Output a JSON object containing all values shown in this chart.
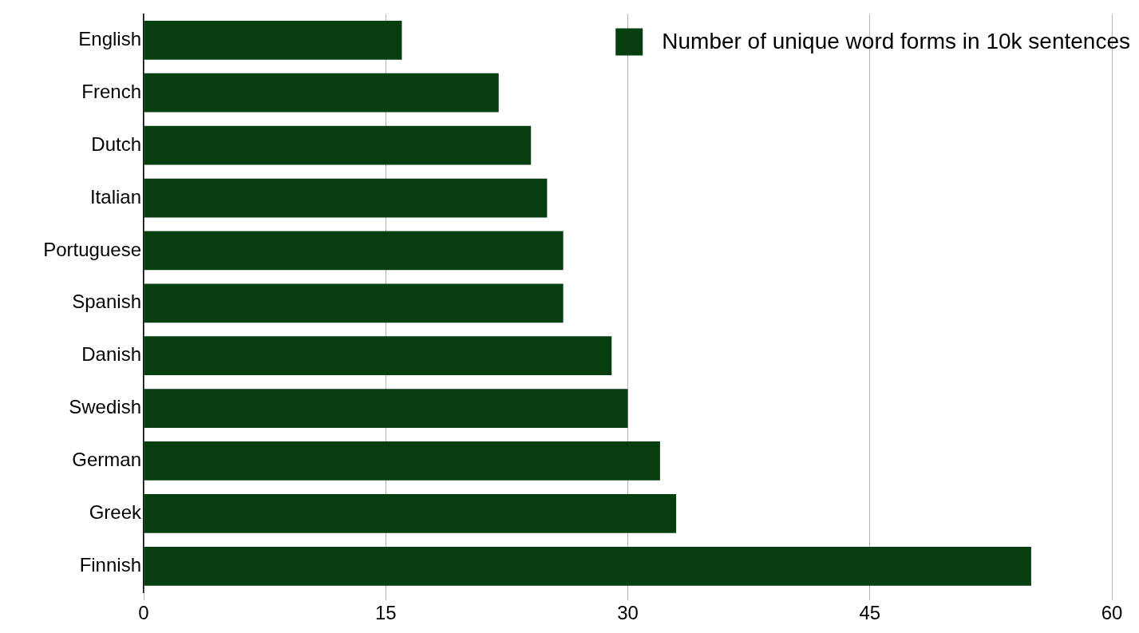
{
  "chart_data": {
    "type": "bar",
    "orientation": "horizontal",
    "categories": [
      "English",
      "French",
      "Dutch",
      "Italian",
      "Portuguese",
      "Spanish",
      "Danish",
      "Swedish",
      "German",
      "Greek",
      "Finnish"
    ],
    "series": [
      {
        "name": "Number of unique word forms in 10k sentences",
        "color": "#073e0f",
        "values": [
          16,
          22,
          24,
          25,
          26,
          26,
          29,
          30,
          32,
          33,
          55
        ]
      }
    ],
    "xlim": [
      0,
      60
    ],
    "xticks": [
      0,
      15,
      30,
      45,
      60
    ],
    "grid": "x",
    "legend": "top right"
  }
}
